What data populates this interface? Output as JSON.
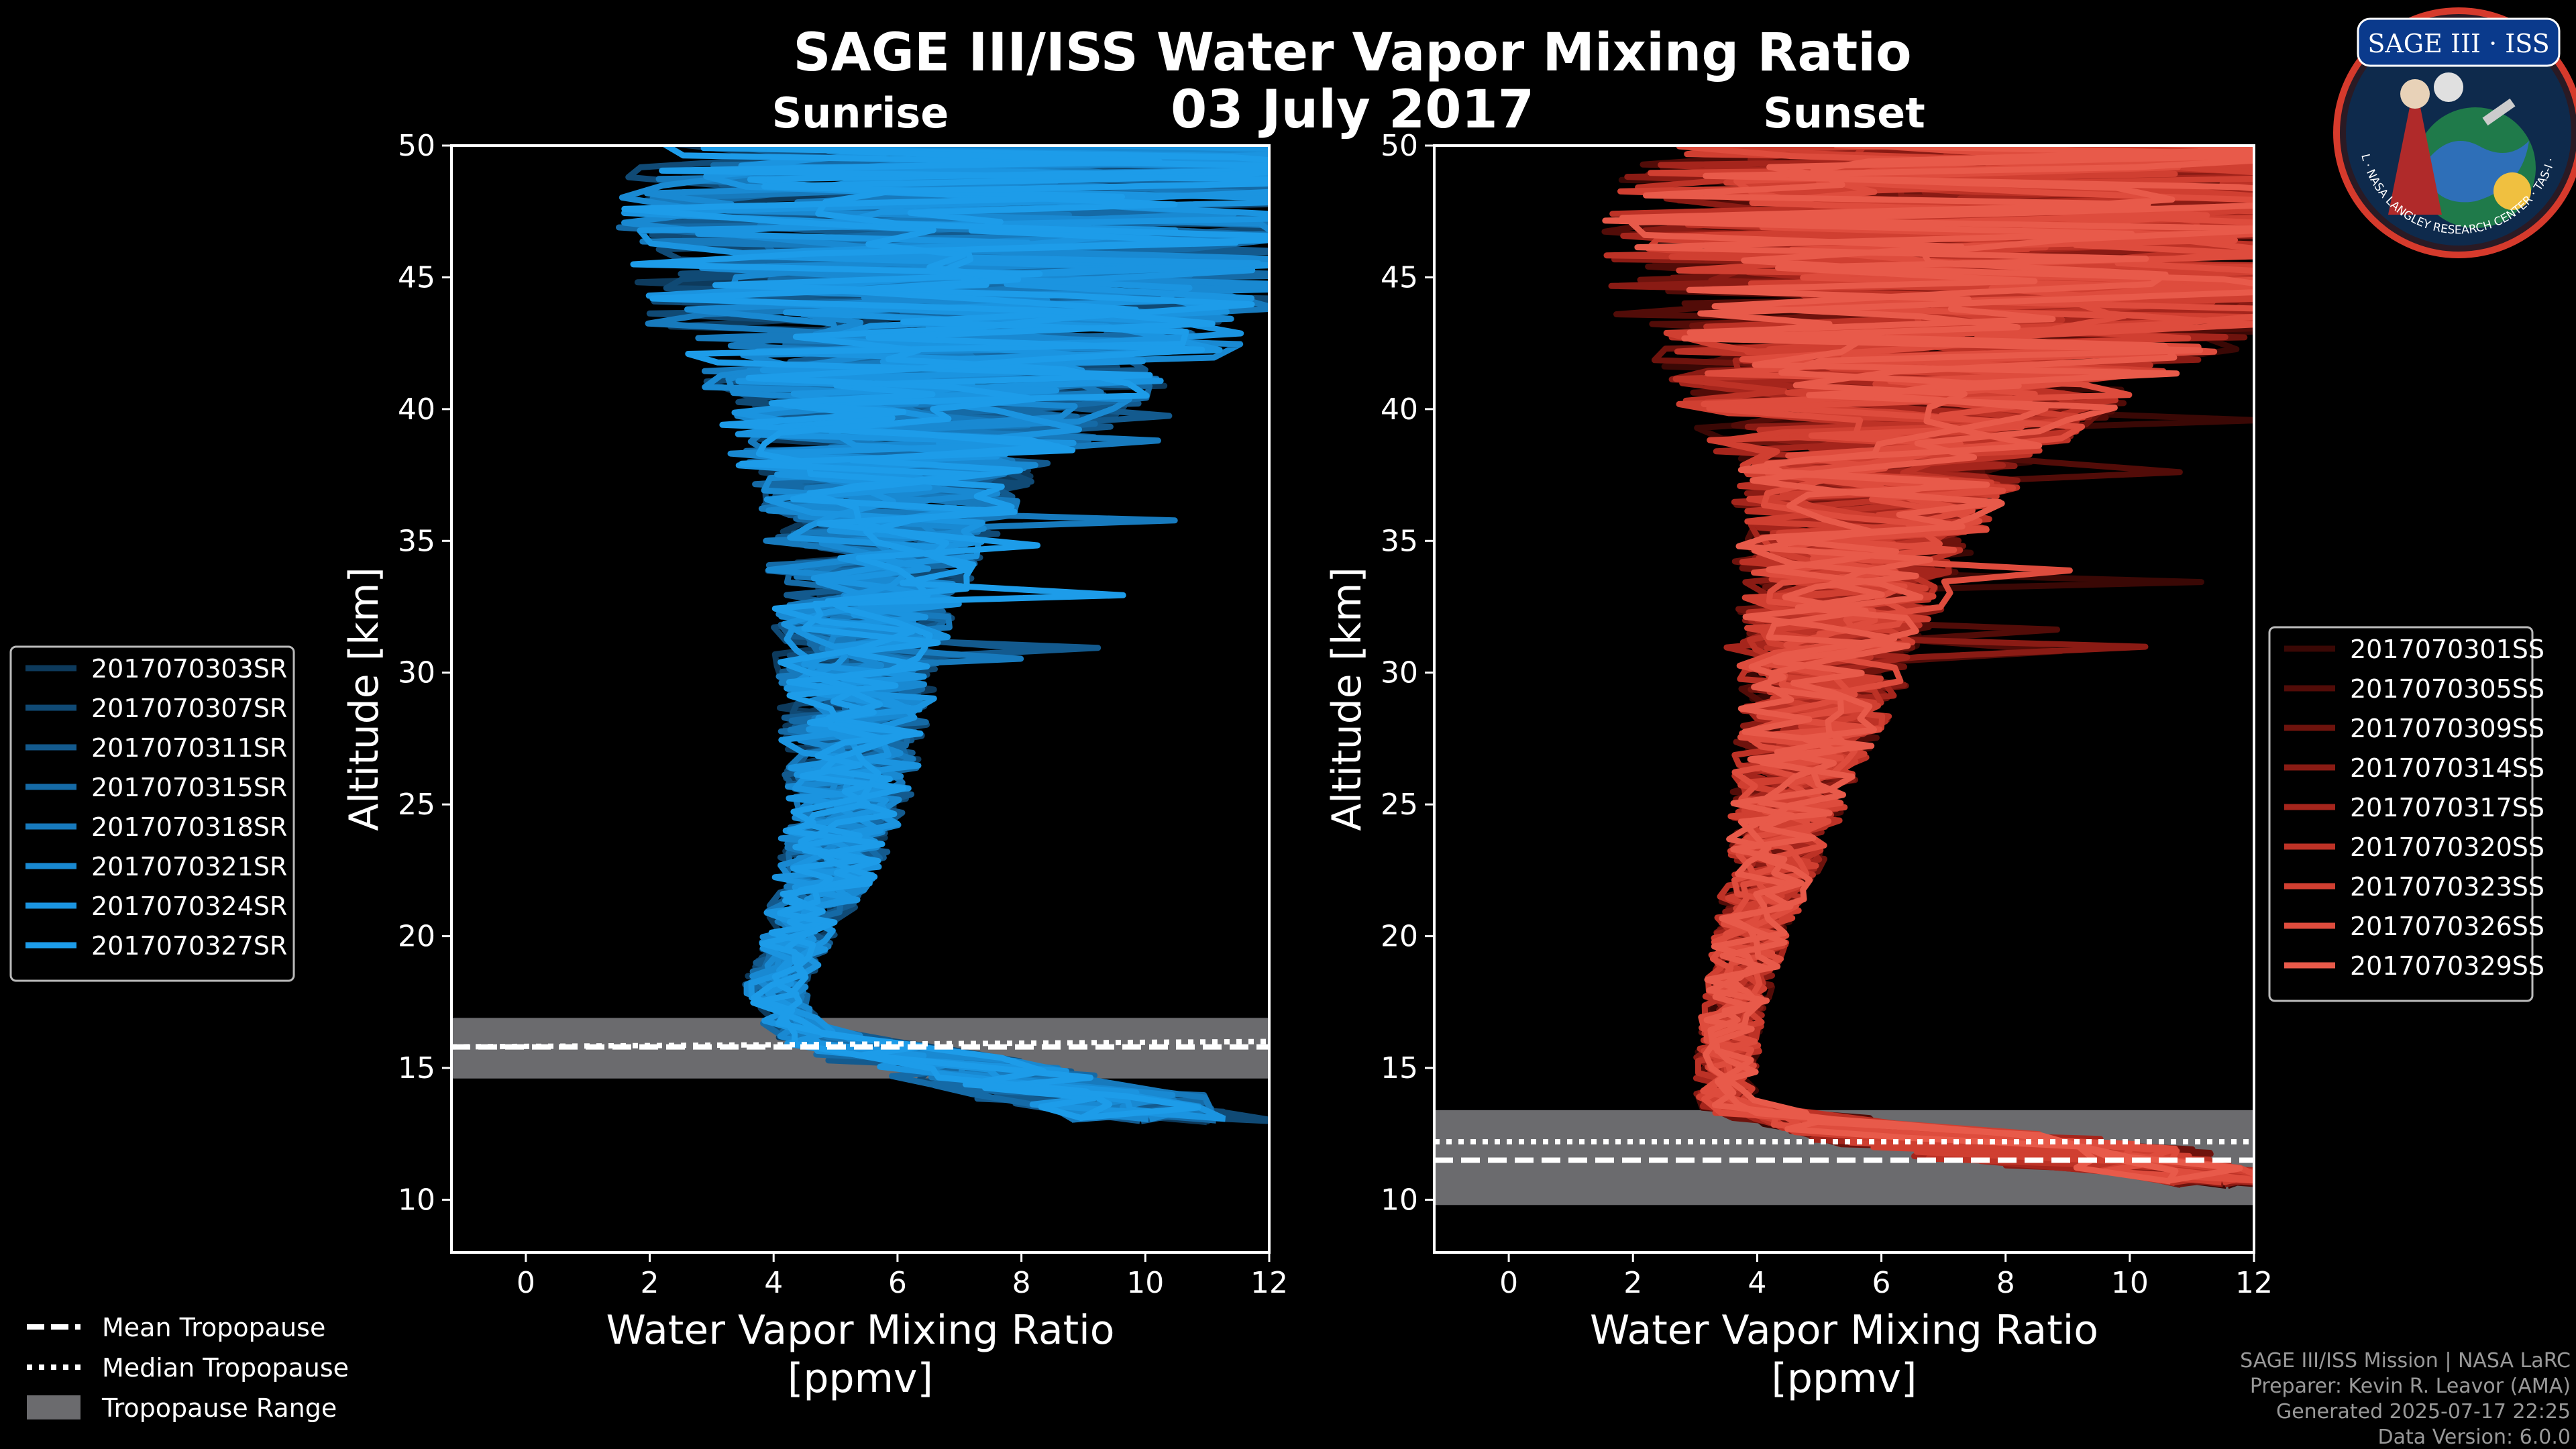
{
  "figure": {
    "title": "SAGE III/ISS Water Vapor Mixing Ratio",
    "date": "03 July 2017",
    "logo": {
      "line1": "SAGE III · ISS",
      "ring_text": "BALL · NASA LANGLEY RESEARCH CENTER · TAS-I · ESA"
    },
    "credits": [
      "SAGE III/ISS Mission | NASA LaRC",
      "Preparer: Kevin R. Leavor (AMA)",
      "Generated 2025-07-17 22:25",
      "Data Version: 6.0.0"
    ],
    "common_legend": [
      {
        "label": "Mean Tropopause",
        "style": "dashed"
      },
      {
        "label": "Median Tropopause",
        "style": "dotted"
      },
      {
        "label": "Tropopause Range",
        "style": "patch"
      }
    ]
  },
  "chart_data": [
    {
      "type": "line",
      "panel": "sunrise",
      "title": "Sunrise",
      "xlabel": "Water Vapor Mixing Ratio\n[ppmv]",
      "ylabel": "Altitude [km]",
      "xlim": [
        -1.2,
        12
      ],
      "ylim": [
        8,
        50
      ],
      "xticks": [
        0,
        2,
        4,
        6,
        8,
        10,
        12
      ],
      "yticks": [
        10,
        15,
        20,
        25,
        30,
        35,
        40,
        45,
        50
      ],
      "tropopause": {
        "mean": 15.8,
        "median": 15.8,
        "range": [
          14.6,
          16.9
        ]
      },
      "series": [
        {
          "name": "2017070303SR",
          "color": "#0d3a5c"
        },
        {
          "name": "2017070307SR",
          "color": "#104a75"
        },
        {
          "name": "2017070311SR",
          "color": "#135a8e"
        },
        {
          "name": "2017070315SR",
          "color": "#156aa6"
        },
        {
          "name": "2017070318SR",
          "color": "#177abd"
        },
        {
          "name": "2017070321SR",
          "color": "#1989d2"
        },
        {
          "name": "2017070324SR",
          "color": "#1b94e0"
        },
        {
          "name": "2017070327SR",
          "color": "#1d9ce9"
        }
      ],
      "profile_core": {
        "alt": [
          12,
          14,
          15.5,
          16.5,
          18,
          20,
          22,
          25,
          28,
          31,
          34,
          37,
          40,
          43,
          46,
          50
        ],
        "ppmv": [
          12,
          9,
          6,
          4.3,
          4.0,
          4.4,
          4.8,
          5.2,
          5.3,
          5.4,
          5.6,
          5.9,
          6.3,
          7.0,
          7.5,
          8.0
        ],
        "spread": [
          1.5,
          2.0,
          1.5,
          0.5,
          0.5,
          0.6,
          0.8,
          1.0,
          1.2,
          1.4,
          1.7,
          2.3,
          3.5,
          5.0,
          6.0,
          6.5
        ]
      }
    },
    {
      "type": "line",
      "panel": "sunset",
      "title": "Sunset",
      "xlabel": "Water Vapor Mixing Ratio\n[ppmv]",
      "ylabel": "Altitude [km]",
      "xlim": [
        -1.2,
        12
      ],
      "ylim": [
        8,
        50
      ],
      "xticks": [
        0,
        2,
        4,
        6,
        8,
        10,
        12
      ],
      "yticks": [
        10,
        15,
        20,
        25,
        30,
        35,
        40,
        45,
        50
      ],
      "tropopause": {
        "mean": 11.5,
        "median": 12.2,
        "range": [
          9.8,
          13.4
        ]
      },
      "series": [
        {
          "name": "2017070301SS",
          "color": "#3a0805"
        },
        {
          "name": "2017070305SS",
          "color": "#520c08"
        },
        {
          "name": "2017070309SS",
          "color": "#6e130d"
        },
        {
          "name": "2017070314SS",
          "color": "#8a1b14"
        },
        {
          "name": "2017070317SS",
          "color": "#a5251c"
        },
        {
          "name": "2017070320SS",
          "color": "#bd3226"
        },
        {
          "name": "2017070323SS",
          "color": "#d03f31"
        },
        {
          "name": "2017070326SS",
          "color": "#de4c3d"
        },
        {
          "name": "2017070329SS",
          "color": "#e85a4a"
        }
      ],
      "profile_core": {
        "alt": [
          10.5,
          12,
          13.5,
          15,
          17,
          20,
          23,
          26,
          29,
          32,
          35,
          38,
          41,
          44,
          47,
          50
        ],
        "ppmv": [
          12,
          8,
          3.5,
          3.5,
          3.6,
          3.9,
          4.3,
          4.6,
          5.0,
          5.3,
          5.6,
          6.0,
          6.5,
          7.5,
          8.0,
          8.5
        ],
        "spread": [
          1.0,
          3.0,
          0.5,
          0.5,
          0.5,
          0.6,
          0.8,
          1.0,
          1.3,
          1.6,
          2.0,
          2.6,
          4.0,
          6.0,
          6.5,
          6.5
        ]
      }
    }
  ]
}
